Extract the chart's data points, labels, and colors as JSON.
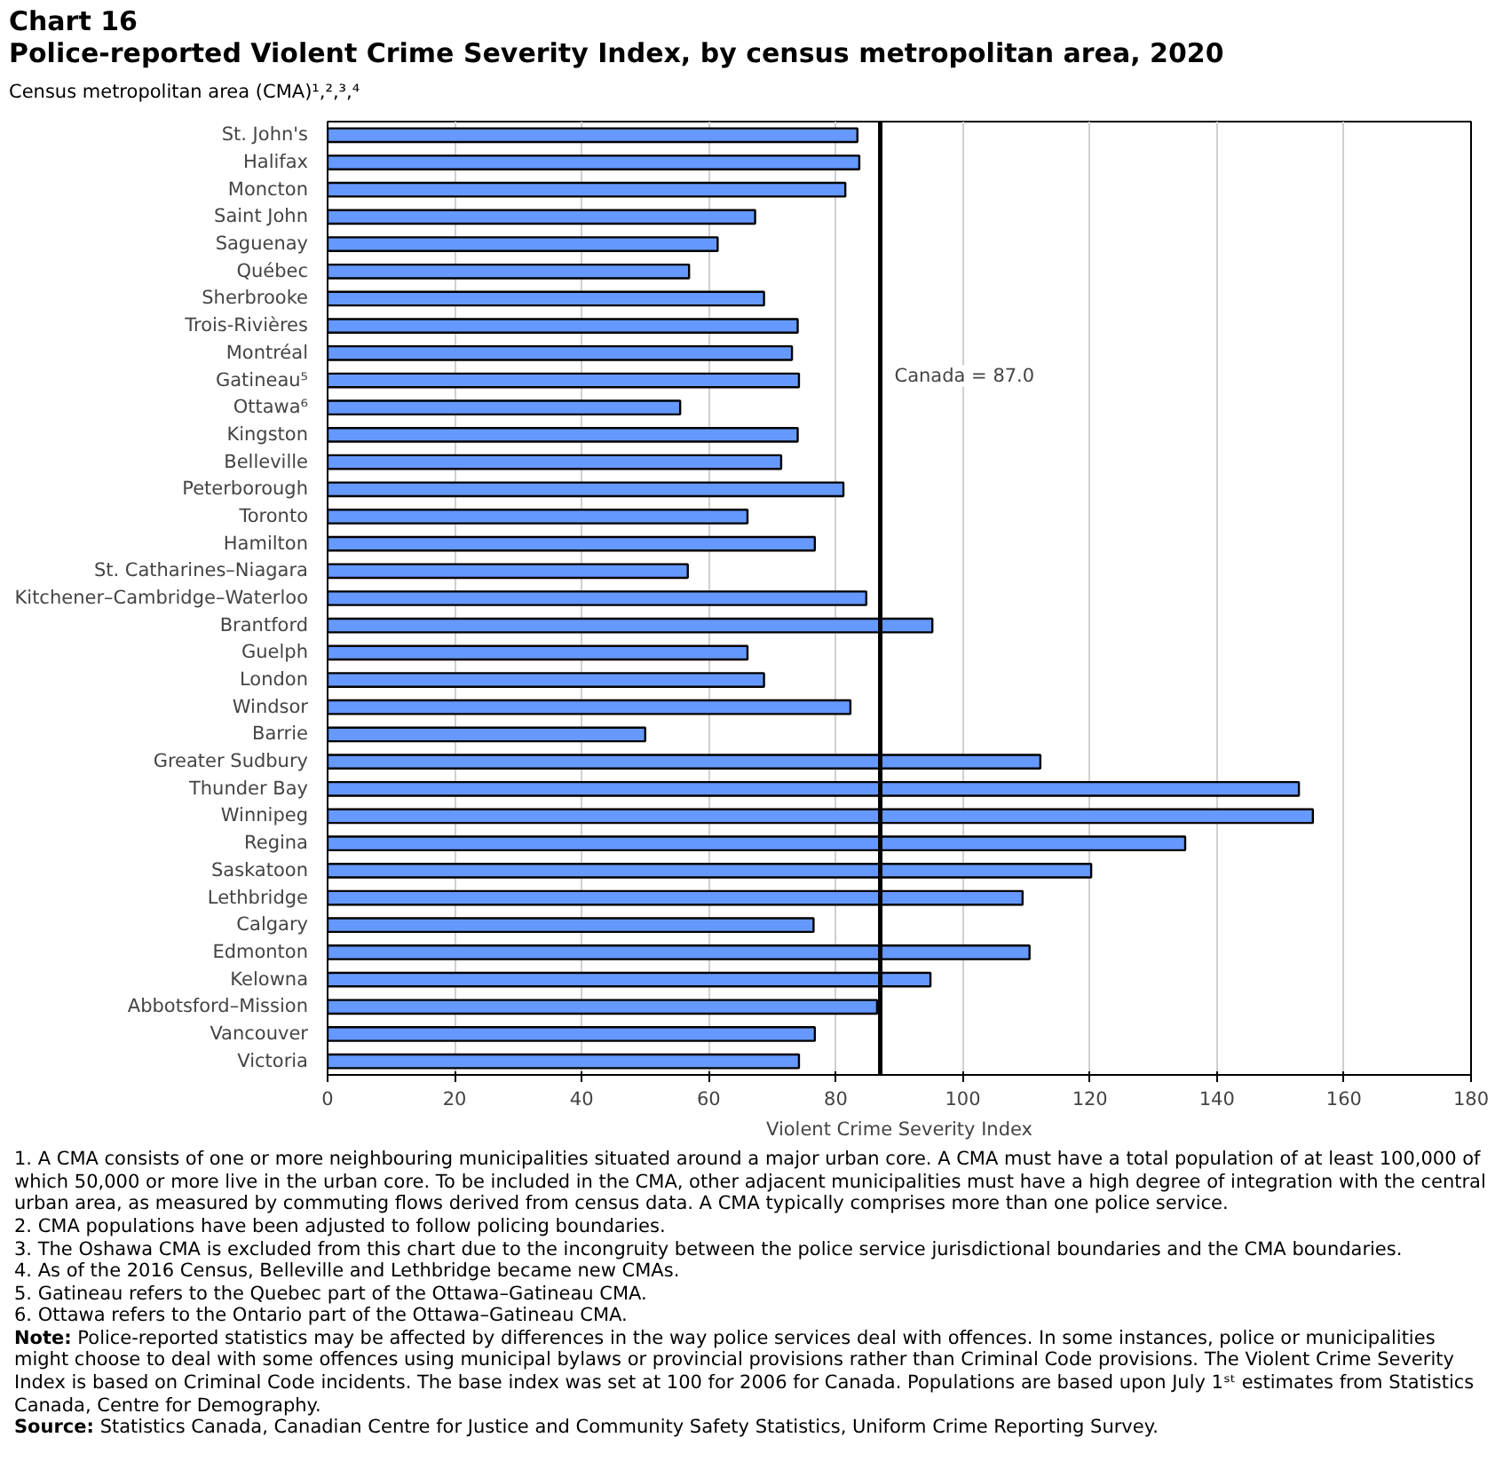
{
  "chart_data": {
    "type": "bar",
    "orientation": "horizontal",
    "title": "Chart 16",
    "subtitle": "Police-reported Violent Crime Severity Index, by census metropolitan area, 2020",
    "ylabel": "Census metropolitan area (CMA)¹,²,³,⁴",
    "xlabel": "Violent Crime Severity Index",
    "categories": [
      "St. John's",
      "Halifax",
      "Moncton",
      "Saint John",
      "Saguenay",
      "Québec",
      "Sherbrooke",
      "Trois-Rivières",
      "Montréal",
      "Gatineau⁵",
      "Ottawa⁶",
      "Kingston",
      "Belleville",
      "Peterborough",
      "Toronto",
      "Hamilton",
      "St. Catharines–Niagara",
      "Kitchener–Cambridge–Waterloo",
      "Brantford",
      "Guelph",
      "London",
      "Windsor",
      "Barrie",
      "Greater Sudbury",
      "Thunder Bay",
      "Winnipeg",
      "Regina",
      "Saskatoon",
      "Lethbridge",
      "Calgary",
      "Edmonton",
      "Kelowna",
      "Abbotsford–Mission",
      "Vancouver",
      "Victoria"
    ],
    "values": [
      83.4,
      83.7,
      81.5,
      67.3,
      61.4,
      56.9,
      68.7,
      74.0,
      73.1,
      74.2,
      55.5,
      74.0,
      71.4,
      81.2,
      66.1,
      76.7,
      56.7,
      84.8,
      95.2,
      66.1,
      68.7,
      82.3,
      50.0,
      112.2,
      152.9,
      155.1,
      135.0,
      120.2,
      109.4,
      76.5,
      110.5,
      94.9,
      86.5,
      76.7,
      74.2
    ],
    "color": "#6699ff",
    "xlim": [
      0,
      180
    ],
    "xticks": [
      0,
      20,
      40,
      60,
      80,
      100,
      120,
      140,
      160,
      180
    ],
    "grid": "x",
    "ref_lines": [
      {
        "axis": "x",
        "value": 87.0,
        "label": "Canada = 87.0"
      }
    ],
    "annotations": [
      "1. A CMA consists of one or more neighbouring municipalities situated around a major urban core. A CMA must have a total population of at least 100,000 of which 50,000 or more live in the urban core. To be included in the CMA, other adjacent municipalities must have a high degree of integration with the central urban area, as measured by commuting flows derived from census data. A CMA typically comprises more than one police service.",
      "2. CMA populations have been adjusted to follow policing boundaries.",
      "3. The Oshawa CMA is excluded from this chart due to the incongruity between the police service jurisdictional boundaries and the CMA boundaries.",
      "4. As of the 2016 Census, Belleville and Lethbridge became new CMAs.",
      "5. Gatineau refers to the Quebec part of the Ottawa–Gatineau CMA.",
      "6. Ottawa refers to the Ontario part of the Ottawa–Gatineau CMA.",
      "Note: Police-reported statistics may be affected by differences in the way police services deal with offences. In some instances, police or municipalities might choose to deal with some offences using municipal bylaws or provincial provisions rather than Criminal Code provisions. The Violent Crime Severity Index is based on Criminal Code incidents. The base index was set at 100 for 2006 for Canada. Populations are based upon July 1ˢᵗ estimates from Statistics Canada, Centre for Demography.",
      "Source: Statistics Canada, Canadian Centre for Justice and Community Safety Statistics, Uniform Crime Reporting Survey."
    ]
  }
}
